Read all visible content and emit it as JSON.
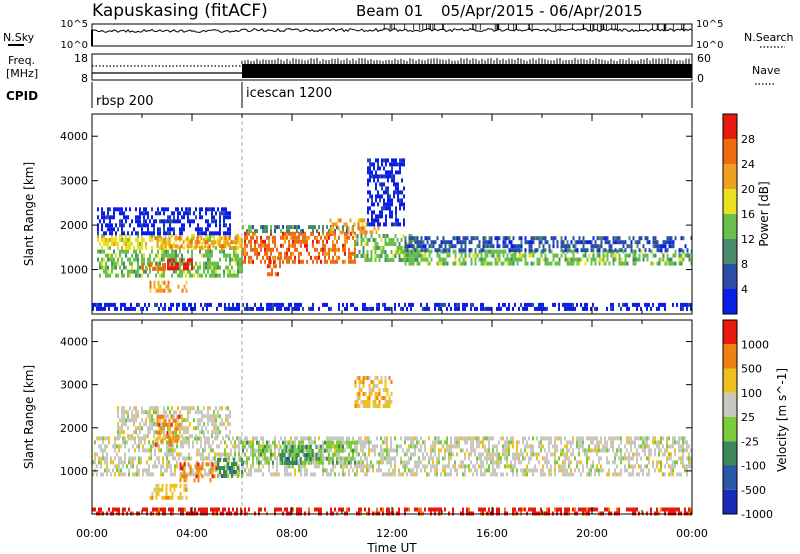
{
  "header": {
    "station": "Kapuskasing (fitACF)",
    "beam": "Beam 01",
    "dates": "05/Apr/2015 - 06/Apr/2015"
  },
  "noise_panel": {
    "left_label": "N.Sky",
    "left_ticks": [
      "10^5",
      "10^0"
    ],
    "right_label": "N.Search",
    "right_ticks": [
      "10^5",
      "10^0"
    ]
  },
  "freq_panel": {
    "left_label_1": "Freq.",
    "left_label_2": "[MHz]",
    "left_ticks": [
      "18",
      "8"
    ],
    "right_label": "Nave",
    "right_ticks": [
      "60",
      "0"
    ]
  },
  "cpid_panel": {
    "label": "CPID",
    "segments": [
      {
        "name": "rbsp 200",
        "start_hour": 0,
        "end_hour": 6
      },
      {
        "name": "icescan 1200",
        "start_hour": 6,
        "end_hour": 24
      }
    ]
  },
  "chart_data": [
    {
      "type": "heatmap",
      "title": "Power",
      "ylabel": "Slant Range [km]",
      "xlim_hours": [
        0,
        24
      ],
      "ylim": [
        0,
        4500
      ],
      "yticks": [
        "1000",
        "2000",
        "3000",
        "4000"
      ],
      "colorbar_label": "Power [dB]",
      "colorbar_ticks": [
        "4",
        "8",
        "12",
        "16",
        "20",
        "24",
        "28"
      ],
      "colors": [
        "#0a1ee8",
        "#2a4ea8",
        "#4a8a6a",
        "#66c04a",
        "#e8e020",
        "#f0a020",
        "#f06a10",
        "#e81a10"
      ],
      "scatter_regions": [
        {
          "x0": 0.2,
          "x1": 6.0,
          "y0": 900,
          "y1": 1450,
          "level": 3
        },
        {
          "x0": 0.2,
          "x1": 6.0,
          "y0": 1450,
          "y1": 1800,
          "level": 4
        },
        {
          "x0": 2.5,
          "x1": 6.0,
          "y0": 1500,
          "y1": 1750,
          "level": 5
        },
        {
          "x0": 0.2,
          "x1": 5.5,
          "y0": 1800,
          "y1": 2400,
          "level": 0
        },
        {
          "x0": 3.0,
          "x1": 4.0,
          "y0": 1000,
          "y1": 1250,
          "level": 7
        },
        {
          "x0": 2.0,
          "x1": 3.0,
          "y0": 1000,
          "y1": 1150,
          "level": 6
        },
        {
          "x0": 2.3,
          "x1": 3.8,
          "y0": 550,
          "y1": 750,
          "level": 5
        },
        {
          "x0": 6.0,
          "x1": 10.5,
          "y0": 1150,
          "y1": 1850,
          "level": 6
        },
        {
          "x0": 6.0,
          "x1": 10.5,
          "y0": 1850,
          "y1": 2000,
          "level": 2
        },
        {
          "x0": 7.0,
          "x1": 7.5,
          "y0": 850,
          "y1": 1300,
          "level": 6
        },
        {
          "x0": 9.5,
          "x1": 11.5,
          "y0": 1800,
          "y1": 2150,
          "level": 5
        },
        {
          "x0": 10.5,
          "x1": 13.0,
          "y0": 1200,
          "y1": 1800,
          "level": 3
        },
        {
          "x0": 11.0,
          "x1": 12.5,
          "y0": 2000,
          "y1": 3500,
          "level": 0
        },
        {
          "x0": 12.5,
          "x1": 24.0,
          "y0": 1100,
          "y1": 1450,
          "level": 3
        },
        {
          "x0": 12.5,
          "x1": 24.0,
          "y0": 1450,
          "y1": 1750,
          "level": 1
        },
        {
          "x0": 0.0,
          "x1": 24.0,
          "y0": 100,
          "y1": 250,
          "level": 0
        }
      ]
    },
    {
      "type": "heatmap",
      "title": "Velocity",
      "xlabel": "Time UT",
      "ylabel": "Slant Range [km]",
      "xlim_hours": [
        0,
        24
      ],
      "ylim": [
        0,
        4500
      ],
      "xticks": [
        "00:00",
        "04:00",
        "08:00",
        "12:00",
        "16:00",
        "20:00",
        "00:00"
      ],
      "yticks": [
        "1000",
        "2000",
        "3000",
        "4000"
      ],
      "colorbar_label": "Velocity [m s^-1]",
      "colorbar_ticks": [
        "1000",
        "500",
        "100",
        "25",
        "-25",
        "-100",
        "-500",
        "-1000"
      ],
      "colors": [
        "#1a2ab8",
        "#2a58a8",
        "#3c8a5a",
        "#7acc3a",
        "#c8c8c0",
        "#f0c020",
        "#f08010",
        "#e81a10"
      ],
      "scatter_regions": [
        {
          "x0": 0.0,
          "x1": 24.0,
          "y0": 900,
          "y1": 1800,
          "level": 4
        },
        {
          "x0": 1.0,
          "x1": 5.5,
          "y0": 1800,
          "y1": 2500,
          "level": 4
        },
        {
          "x0": 2.5,
          "x1": 3.5,
          "y0": 1600,
          "y1": 2300,
          "level": 6
        },
        {
          "x0": 3.5,
          "x1": 5.0,
          "y0": 800,
          "y1": 1200,
          "level": 6
        },
        {
          "x0": 2.3,
          "x1": 3.8,
          "y0": 400,
          "y1": 700,
          "level": 5
        },
        {
          "x0": 5.0,
          "x1": 6.0,
          "y0": 900,
          "y1": 1300,
          "level": 2
        },
        {
          "x0": 6.0,
          "x1": 10.5,
          "y0": 1200,
          "y1": 1700,
          "level": 3
        },
        {
          "x0": 7.5,
          "x1": 9.0,
          "y0": 1200,
          "y1": 1600,
          "level": 2
        },
        {
          "x0": 10.5,
          "x1": 12.0,
          "y0": 2500,
          "y1": 3200,
          "level": 5
        },
        {
          "x0": 0.0,
          "x1": 24.0,
          "y0": 50,
          "y1": 150,
          "level": 7
        }
      ]
    }
  ]
}
